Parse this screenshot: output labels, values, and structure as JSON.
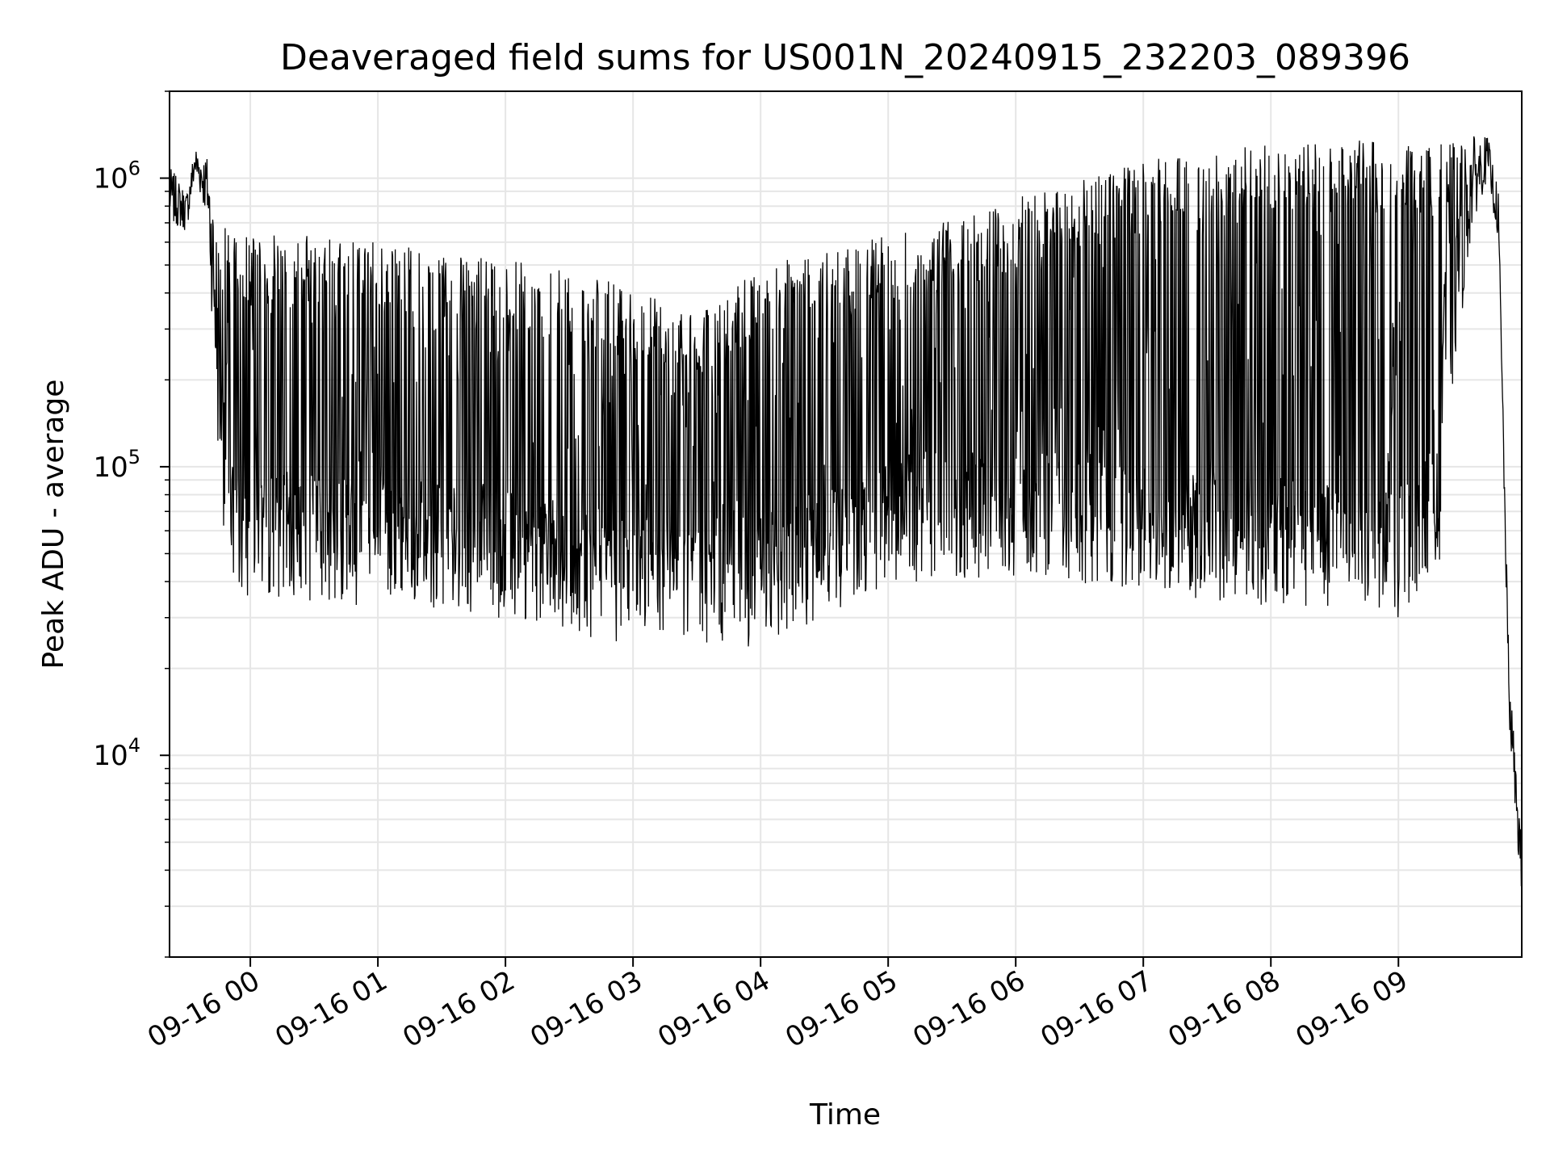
{
  "chart_data": {
    "type": "line",
    "title": "Deaveraged field sums for US001N_20240915_232203_089396",
    "xlabel": "Time",
    "ylabel": "Peak ADU - average",
    "yscale": "log",
    "ylim": [
      2000,
      2000000
    ],
    "xlim": [
      "2024-09-15 23:22",
      "2024-09-16 09:58"
    ],
    "grid": true,
    "colors": {
      "line": "#000000",
      "grid": "#e6e6e6"
    },
    "x_ticks": [
      {
        "value": "2024-09-16 00:00",
        "label": "09-16 00"
      },
      {
        "value": "2024-09-16 01:00",
        "label": "09-16 01"
      },
      {
        "value": "2024-09-16 02:00",
        "label": "09-16 02"
      },
      {
        "value": "2024-09-16 03:00",
        "label": "09-16 03"
      },
      {
        "value": "2024-09-16 04:00",
        "label": "09-16 04"
      },
      {
        "value": "2024-09-16 05:00",
        "label": "09-16 05"
      },
      {
        "value": "2024-09-16 06:00",
        "label": "09-16 06"
      },
      {
        "value": "2024-09-16 07:00",
        "label": "09-16 07"
      },
      {
        "value": "2024-09-16 08:00",
        "label": "09-16 08"
      },
      {
        "value": "2024-09-16 09:00",
        "label": "09-16 09"
      }
    ],
    "y_ticks": [
      {
        "value": 10000,
        "base": "10",
        "exp": "4"
      },
      {
        "value": 100000,
        "base": "10",
        "exp": "5"
      },
      {
        "value": 1000000,
        "base": "10",
        "exp": "6"
      }
    ],
    "series": [
      {
        "envelope": [
          {
            "time": "2024-09-15 23:22",
            "low": 700000,
            "high": 1100000
          },
          {
            "time": "2024-09-15 23:30",
            "low": 650000,
            "high": 900000
          },
          {
            "time": "2024-09-15 23:34",
            "low": 1000000,
            "high": 1300000
          },
          {
            "time": "2024-09-15 23:40",
            "low": 700000,
            "high": 1200000
          },
          {
            "time": "2024-09-15 23:45",
            "low": 100000,
            "high": 700000
          },
          {
            "time": "2024-09-15 23:50",
            "low": 38000,
            "high": 680000
          },
          {
            "time": "2024-09-16 00:00",
            "low": 36000,
            "high": 640000
          },
          {
            "time": "2024-09-16 00:30",
            "low": 36000,
            "high": 630000
          },
          {
            "time": "2024-09-16 01:00",
            "low": 35000,
            "high": 600000
          },
          {
            "time": "2024-09-16 01:30",
            "low": 34000,
            "high": 550000
          },
          {
            "time": "2024-09-16 02:00",
            "low": 33000,
            "high": 520000
          },
          {
            "time": "2024-09-16 02:30",
            "low": 33000,
            "high": 480000
          },
          {
            "time": "2024-09-16 03:00",
            "low": 30000,
            "high": 420000
          },
          {
            "time": "2024-09-16 03:30",
            "low": 30000,
            "high": 330000
          },
          {
            "time": "2024-09-16 04:00",
            "low": 32000,
            "high": 500000
          },
          {
            "time": "2024-09-16 04:30",
            "low": 32000,
            "high": 560000
          },
          {
            "time": "2024-09-16 05:00",
            "low": 50000,
            "high": 640000
          },
          {
            "time": "2024-09-16 05:30",
            "low": 45000,
            "high": 720000
          },
          {
            "time": "2024-09-16 06:00",
            "low": 52000,
            "high": 850000
          },
          {
            "time": "2024-09-16 06:30",
            "low": 50000,
            "high": 1000000
          },
          {
            "time": "2024-09-16 07:00",
            "low": 45000,
            "high": 1150000
          },
          {
            "time": "2024-09-16 07:30",
            "low": 42000,
            "high": 1250000
          },
          {
            "time": "2024-09-16 08:00",
            "low": 38000,
            "high": 1300000
          },
          {
            "time": "2024-09-16 08:30",
            "low": 36000,
            "high": 1350000
          },
          {
            "time": "2024-09-16 09:00",
            "low": 36000,
            "high": 1350000
          },
          {
            "time": "2024-09-16 09:15",
            "low": 40000,
            "high": 1300000
          },
          {
            "time": "2024-09-16 09:35",
            "low": 700000,
            "high": 1400000
          },
          {
            "time": "2024-09-16 09:42",
            "low": 1000000,
            "high": 1400000
          },
          {
            "time": "2024-09-16 09:47",
            "low": 600000,
            "high": 900000
          },
          {
            "time": "2024-09-16 09:52",
            "low": 13000,
            "high": 20000
          },
          {
            "time": "2024-09-16 09:58",
            "low": 3000,
            "high": 5000
          }
        ],
        "baseline": [
          {
            "time": "2024-09-15 23:50",
            "value": 60000
          },
          {
            "time": "2024-09-16 01:00",
            "value": 55000
          },
          {
            "time": "2024-09-16 02:00",
            "value": 50000
          },
          {
            "time": "2024-09-16 03:00",
            "value": 40000
          },
          {
            "time": "2024-09-16 03:30",
            "value": 40000
          },
          {
            "time": "2024-09-16 04:00",
            "value": 40000
          },
          {
            "time": "2024-09-16 04:40",
            "value": 55000
          },
          {
            "time": "2024-09-16 05:00",
            "value": 65000
          },
          {
            "time": "2024-09-16 06:00",
            "value": 70000
          },
          {
            "time": "2024-09-16 07:00",
            "value": 60000
          },
          {
            "time": "2024-09-16 08:00",
            "value": 55000
          },
          {
            "time": "2024-09-16 09:00",
            "value": 50000
          },
          {
            "time": "2024-09-16 09:20",
            "value": 80000
          }
        ]
      }
    ]
  }
}
